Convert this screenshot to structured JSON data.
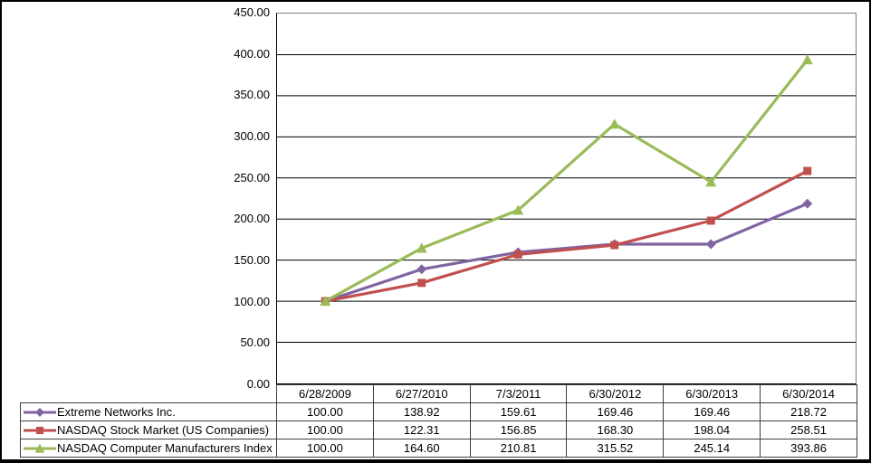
{
  "chart_data": {
    "type": "line",
    "title": "",
    "xlabel": "",
    "ylabel": "",
    "categories": [
      "6/28/2009",
      "6/27/2010",
      "7/3/2011",
      "6/30/2012",
      "6/30/2013",
      "6/30/2014"
    ],
    "series": [
      {
        "name": "Extreme Networks Inc.",
        "color": "#8064A2",
        "marker": "diamond",
        "values": [
          100.0,
          138.92,
          159.61,
          169.46,
          169.46,
          218.72
        ]
      },
      {
        "name": "NASDAQ Stock Market (US Companies)",
        "color": "#C0504D",
        "marker": "square",
        "values": [
          100.0,
          122.31,
          156.85,
          168.3,
          198.04,
          258.51
        ]
      },
      {
        "name": "NASDAQ Computer Manufacturers Index",
        "color": "#9BBB59",
        "marker": "triangle",
        "values": [
          100.0,
          164.6,
          210.81,
          315.52,
          245.14,
          393.86
        ]
      }
    ],
    "ylim": [
      0,
      450
    ],
    "ytick_step": 50,
    "ytick_labels": [
      "0.00",
      "50.00",
      "100.00",
      "150.00",
      "200.00",
      "250.00",
      "300.00",
      "350.00",
      "400.00",
      "450.00"
    ],
    "grid": true,
    "gridline_color": "#000000",
    "plot_border_color": "#808080",
    "legend_position": "table-left",
    "value_decimals": 2
  }
}
